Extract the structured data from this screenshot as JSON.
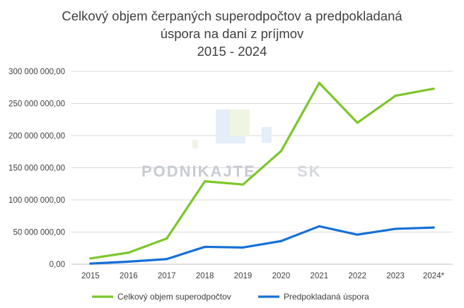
{
  "chart_data": {
    "type": "line",
    "title_lines": [
      "Celkový objem čerpaných superodpočtov a predpokladaná",
      "úspora na dani z príjmov",
      "2015 - 2024"
    ],
    "categories": [
      "2015",
      "2016",
      "2017",
      "2018",
      "2019",
      "2020",
      "2021",
      "2022",
      "2023",
      "2024*"
    ],
    "y_ticks": [
      "0,00",
      "50 000 000,00",
      "100 000 000,00",
      "150 000 000,00",
      "200 000 000,00",
      "250 000 000,00",
      "300 000 000,00"
    ],
    "ylim": [
      0,
      300000000
    ],
    "grid": true,
    "legend_position": "bottom",
    "series": [
      {
        "name": "Celkový objem superodpočtov",
        "color": "#7cc62c",
        "values": [
          9000000,
          18000000,
          40000000,
          129000000,
          124000000,
          176000000,
          282000000,
          220000000,
          262000000,
          273000000
        ]
      },
      {
        "name": "Predpokladaná úspora",
        "color": "#1570d6",
        "values": [
          1000000,
          4000000,
          8000000,
          27000000,
          26000000,
          36000000,
          59000000,
          46000000,
          55000000,
          57000000
        ]
      }
    ]
  },
  "watermark": {
    "text_bold": "PODNIKAJTE",
    "text_light": "SK",
    "colors": {
      "text": "#c8ccd2",
      "light": "#dfe3e8",
      "stripe_blue": "#cfe3f7",
      "stripe_green": "#e6f1d4"
    }
  }
}
